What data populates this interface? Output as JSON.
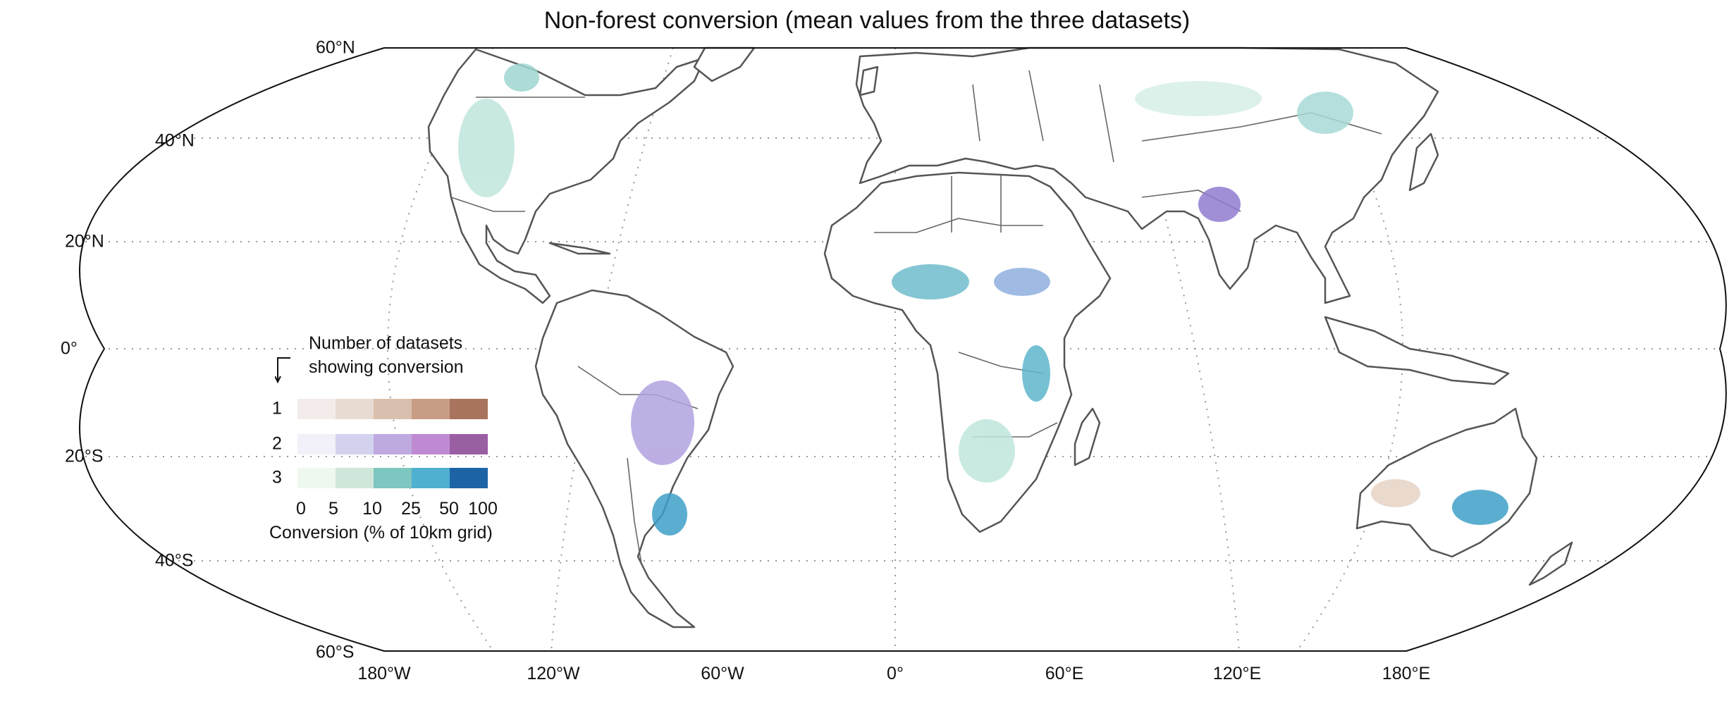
{
  "title": "Non-forest conversion (mean values from the three datasets)",
  "latitude_labels": [
    "60°N",
    "40°N",
    "20°N",
    "0°",
    "20°S",
    "40°S",
    "60°S"
  ],
  "longitude_labels": [
    "180°W",
    "120°W",
    "60°W",
    "0°",
    "60°E",
    "120°E",
    "180°E"
  ],
  "legend": {
    "title_line1": "Number of datasets",
    "title_line2": "showing conversion",
    "rows": [
      {
        "label": "1",
        "colors": [
          "#f3ecea",
          "#e8dbd2",
          "#d9c0ae",
          "#c99d85",
          "#a9745e"
        ]
      },
      {
        "label": "2",
        "colors": [
          "#f2f0f8",
          "#d3d2ee",
          "#bfaae0",
          "#bf8ad1",
          "#9a5fa3"
        ]
      },
      {
        "label": "3",
        "colors": [
          "#eef8ee",
          "#cfe7da",
          "#7ec6c0",
          "#4fb0d0",
          "#1d64a6"
        ]
      }
    ],
    "ticks": [
      "0",
      "5",
      "10",
      "25",
      "50",
      "100"
    ],
    "axis_title": "Conversion (% of 10km grid)"
  },
  "colors": {
    "border": "#555555",
    "frame": "#111111",
    "grid": "#999999",
    "conversion_teal": "#4fb0c6",
    "conversion_purple": "#8f7bd0",
    "conversion_brown": "#c99d85"
  }
}
